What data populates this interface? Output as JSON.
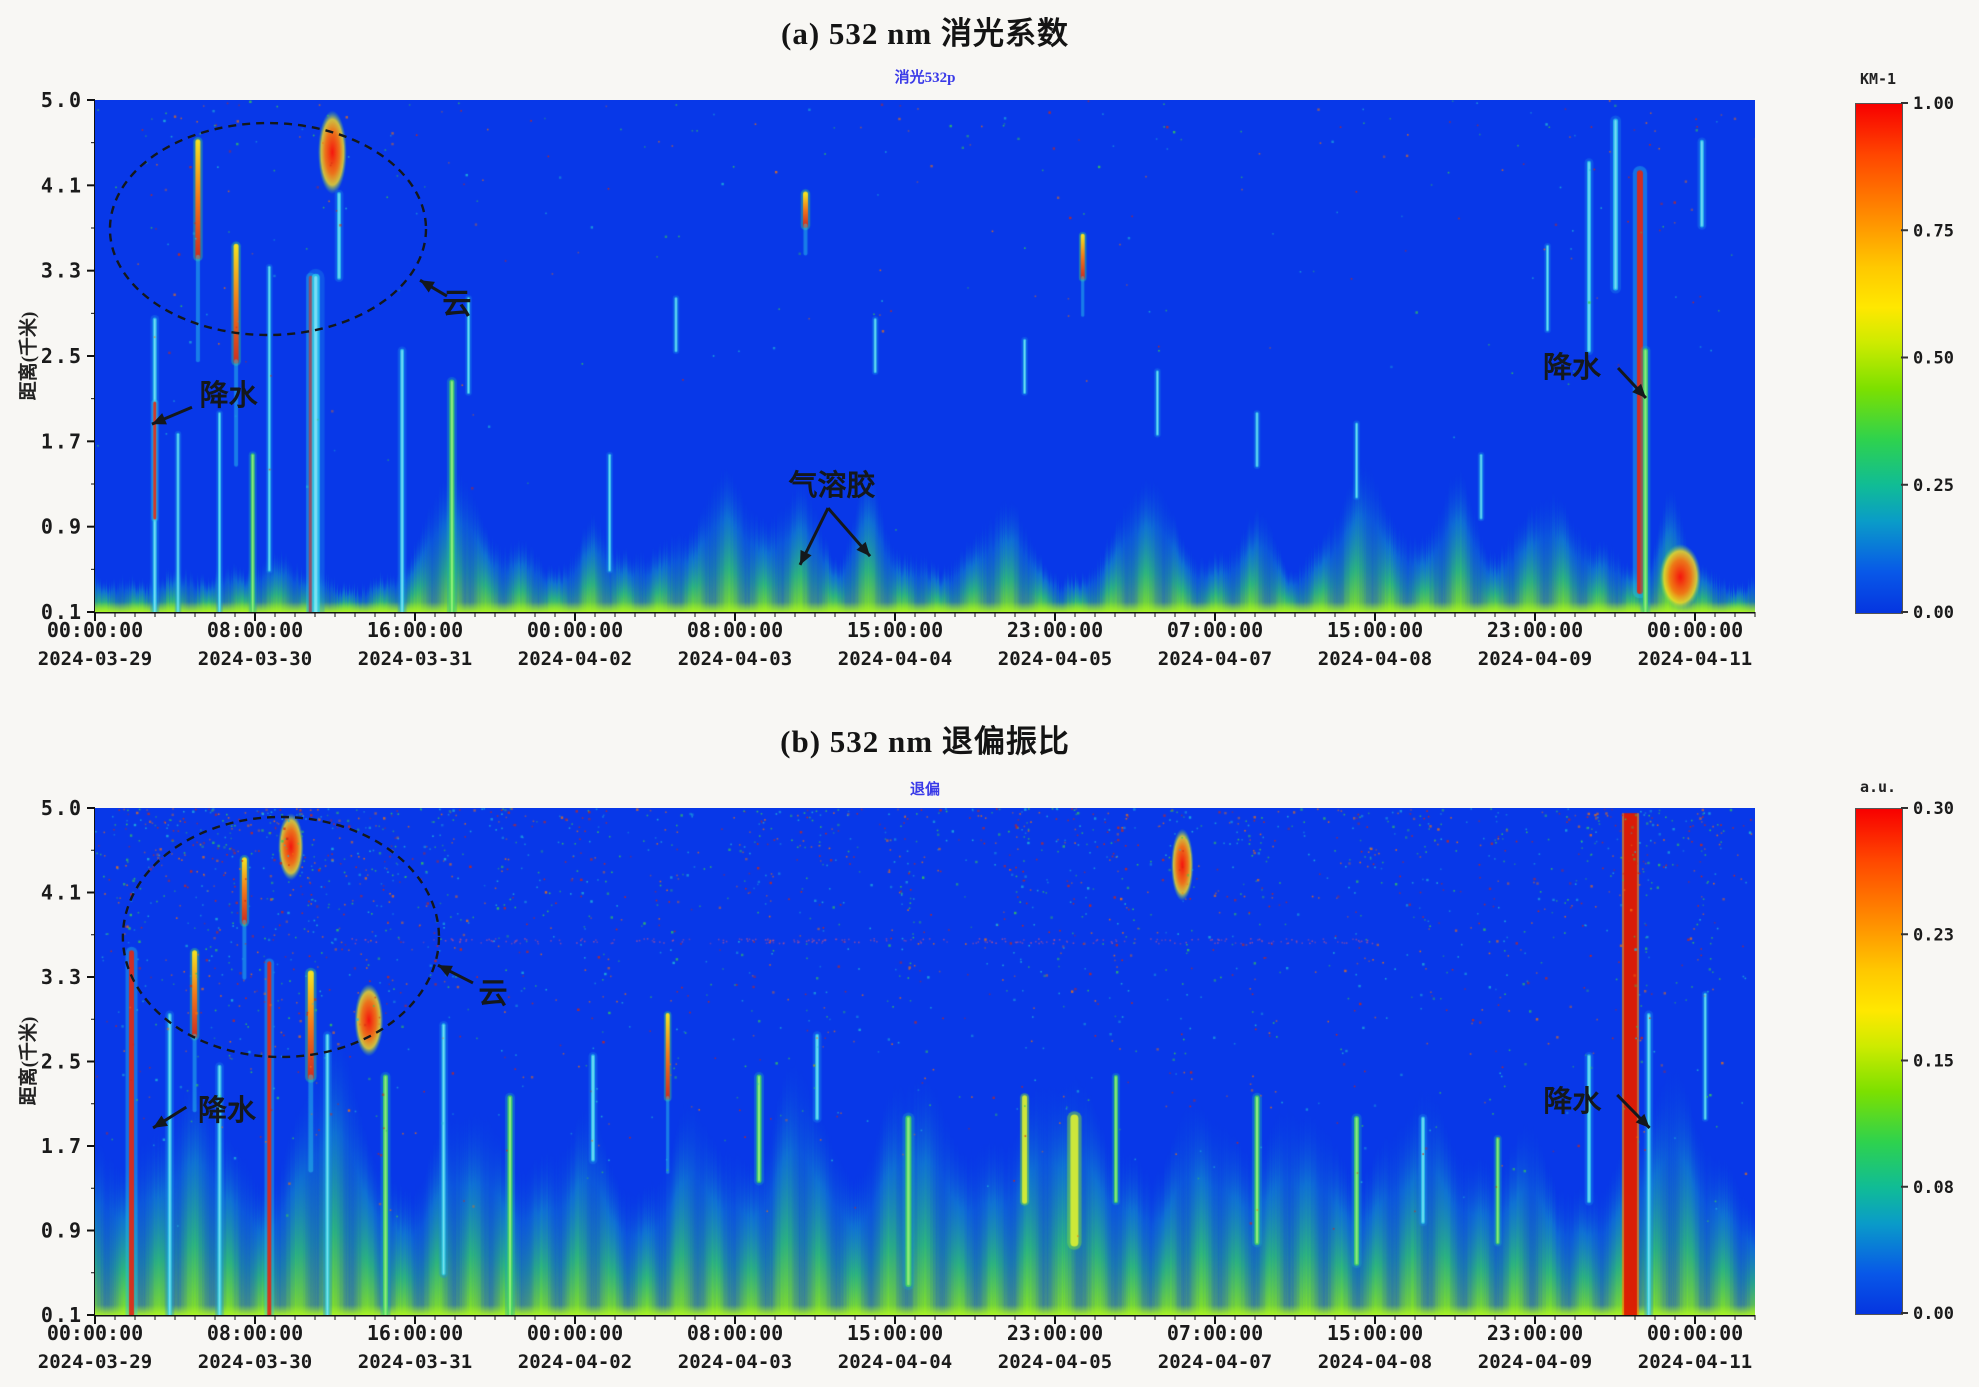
{
  "colors": {
    "heatmap_background": "#0838e8",
    "subtitle_text": "#3a3ae8",
    "annotation_ink": "#14181c",
    "colormap": [
      "#ff0000",
      "#ff8c00",
      "#ffe000",
      "#7ce000",
      "#12c08c",
      "#0a9cc8",
      "#0535e0"
    ]
  },
  "chart_data": [
    {
      "panel": "a",
      "type": "heatmap",
      "title": "(a) 532 nm 消光系数",
      "subtitle": "消光532p",
      "ylabel": "距离(千米)",
      "ylim": [
        0.1,
        5.0
      ],
      "y_ticks": [
        "5.0",
        "4.1",
        "3.3",
        "2.5",
        "1.7",
        "0.9",
        "0.1"
      ],
      "x_ticks": [
        {
          "time": "00:00:00",
          "date": "2024-03-29"
        },
        {
          "time": "08:00:00",
          "date": "2024-03-30"
        },
        {
          "time": "16:00:00",
          "date": "2024-03-31"
        },
        {
          "time": "00:00:00",
          "date": "2024-04-02"
        },
        {
          "time": "08:00:00",
          "date": "2024-04-03"
        },
        {
          "time": "15:00:00",
          "date": "2024-04-04"
        },
        {
          "time": "23:00:00",
          "date": "2024-04-05"
        },
        {
          "time": "07:00:00",
          "date": "2024-04-07"
        },
        {
          "time": "15:00:00",
          "date": "2024-04-08"
        },
        {
          "time": "23:00:00",
          "date": "2024-04-09"
        },
        {
          "time": "00:00:00",
          "date": "2024-04-11"
        }
      ],
      "colorbar": {
        "title": "KM-1",
        "range": [
          0.0,
          1.0
        ],
        "ticks": [
          "1.00",
          "0.75",
          "0.50",
          "0.25",
          "0.00"
        ]
      },
      "annotations": [
        {
          "label": "云",
          "label_xy": [
            0.218,
            0.397
          ],
          "arrows": [
            [
              0.212,
              0.383,
              0.1958,
              0.352
            ]
          ],
          "ellipse": {
            "cx": 0.1042,
            "cy": 0.252,
            "rx": 0.0952,
            "ry": 0.207
          }
        },
        {
          "label": "降水",
          "label_xy": [
            0.0805,
            0.576
          ],
          "arrows": [
            [
              0.0584,
              0.6,
              0.0343,
              0.633
            ]
          ]
        },
        {
          "label": "气溶胶",
          "label_xy": [
            0.444,
            0.752
          ],
          "arrows": [
            [
              0.4416,
              0.797,
              0.4247,
              0.908
            ],
            [
              0.4416,
              0.797,
              0.4669,
              0.891
            ]
          ]
        },
        {
          "label": "降水",
          "label_xy": [
            0.8898,
            0.5215
          ],
          "arrows": [
            [
              0.9175,
              0.5234,
              0.9343,
              0.582
            ]
          ]
        }
      ],
      "render": {
        "seed": 11,
        "layer_base": 0.35,
        "layer_var": 0.42,
        "max_h": 2.0,
        "speckles": 300,
        "dustline": false,
        "humps": [
          {
            "c": 0.215,
            "w": 0.018,
            "a": 0.9
          },
          {
            "c": 0.3,
            "w": 0.01,
            "a": 0.6
          },
          {
            "c": 0.38,
            "w": 0.02,
            "a": 0.7
          },
          {
            "c": 0.425,
            "w": 0.015,
            "a": 0.9
          },
          {
            "c": 0.465,
            "w": 0.012,
            "a": 0.8
          },
          {
            "c": 0.55,
            "w": 0.02,
            "a": 0.7
          },
          {
            "c": 0.635,
            "w": 0.02,
            "a": 0.8
          },
          {
            "c": 0.7,
            "w": 0.015,
            "a": 0.6
          },
          {
            "c": 0.765,
            "w": 0.02,
            "a": 0.7
          },
          {
            "c": 0.82,
            "w": 0.015,
            "a": 0.8
          },
          {
            "c": 0.87,
            "w": 0.02,
            "a": 0.6
          },
          {
            "c": 0.95,
            "w": 0.01,
            "a": 0.8
          }
        ],
        "plumes": [
          {
            "x": 0.036,
            "y0": 0.1,
            "y1": 2.9,
            "w": 4,
            "c": "cyan"
          },
          {
            "x": 0.036,
            "y0": 1.0,
            "y1": 2.1,
            "w": 3,
            "c": "red"
          },
          {
            "x": 0.05,
            "y0": 0.1,
            "y1": 1.8,
            "w": 3,
            "c": "cyan"
          },
          {
            "x": 0.062,
            "y0": 3.5,
            "y1": 4.6,
            "w": 5,
            "c": "warm"
          },
          {
            "x": 0.075,
            "y0": 0.1,
            "y1": 2.0,
            "w": 3,
            "c": "cyan"
          },
          {
            "x": 0.085,
            "y0": 2.5,
            "y1": 3.6,
            "w": 5,
            "c": "warm"
          },
          {
            "x": 0.095,
            "y0": 0.1,
            "y1": 1.6,
            "w": 4,
            "c": "green"
          },
          {
            "x": 0.105,
            "y0": 0.5,
            "y1": 3.4,
            "w": 3,
            "c": "cyan"
          },
          {
            "x": 0.13,
            "y0": 0.1,
            "y1": 3.3,
            "w": 4,
            "c": "red"
          },
          {
            "x": 0.133,
            "y0": 0.1,
            "y1": 3.3,
            "w": 8,
            "c": "cyan"
          },
          {
            "x": 0.143,
            "y0": 4.1,
            "y1": 4.9,
            "w": 9,
            "c": "hot"
          },
          {
            "x": 0.147,
            "y0": 3.3,
            "y1": 4.1,
            "w": 4,
            "c": "cyan"
          },
          {
            "x": 0.185,
            "y0": 0.1,
            "y1": 2.6,
            "w": 4,
            "c": "cyan"
          },
          {
            "x": 0.215,
            "y0": 0.1,
            "y1": 2.3,
            "w": 5,
            "c": "green"
          },
          {
            "x": 0.225,
            "y0": 2.2,
            "y1": 3.1,
            "w": 3,
            "c": "cyan"
          },
          {
            "x": 0.31,
            "y0": 0.5,
            "y1": 1.6,
            "w": 3,
            "c": "cyan"
          },
          {
            "x": 0.35,
            "y0": 2.6,
            "y1": 3.1,
            "w": 3,
            "c": "cyan"
          },
          {
            "x": 0.428,
            "y0": 3.8,
            "y1": 4.1,
            "w": 5,
            "c": "warm"
          },
          {
            "x": 0.47,
            "y0": 2.4,
            "y1": 2.9,
            "w": 3,
            "c": "cyan"
          },
          {
            "x": 0.56,
            "y0": 2.2,
            "y1": 2.7,
            "w": 3,
            "c": "cyan"
          },
          {
            "x": 0.595,
            "y0": 3.3,
            "y1": 3.7,
            "w": 4,
            "c": "warm"
          },
          {
            "x": 0.64,
            "y0": 1.8,
            "y1": 2.4,
            "w": 3,
            "c": "cyan"
          },
          {
            "x": 0.7,
            "y0": 1.5,
            "y1": 2.0,
            "w": 3,
            "c": "cyan"
          },
          {
            "x": 0.76,
            "y0": 1.2,
            "y1": 1.9,
            "w": 3,
            "c": "cyan"
          },
          {
            "x": 0.835,
            "y0": 1.0,
            "y1": 1.6,
            "w": 3,
            "c": "cyan"
          },
          {
            "x": 0.875,
            "y0": 2.8,
            "y1": 3.6,
            "w": 3,
            "c": "cyan"
          },
          {
            "x": 0.9,
            "y0": 2.6,
            "y1": 4.4,
            "w": 4,
            "c": "cyan"
          },
          {
            "x": 0.916,
            "y0": 3.2,
            "y1": 4.8,
            "w": 5,
            "c": "cyan"
          },
          {
            "x": 0.9307,
            "y0": 0.3,
            "y1": 4.3,
            "w": 6,
            "c": "red"
          },
          {
            "x": 0.934,
            "y0": 0.1,
            "y1": 2.6,
            "w": 5,
            "c": "green"
          },
          {
            "x": 0.955,
            "y0": 0.12,
            "y1": 0.75,
            "w": 13,
            "c": "hot"
          },
          {
            "x": 0.968,
            "y0": 3.8,
            "y1": 4.6,
            "w": 4,
            "c": "cyan"
          }
        ]
      }
    },
    {
      "panel": "b",
      "type": "heatmap",
      "title": "(b) 532 nm 退偏振比",
      "subtitle": "退偏",
      "ylabel": "距离(千米)",
      "ylim": [
        0.1,
        5.0
      ],
      "y_ticks": [
        "5.0",
        "4.1",
        "3.3",
        "2.5",
        "1.7",
        "0.9",
        "0.1"
      ],
      "x_ticks": [
        {
          "time": "00:00:00",
          "date": "2024-03-29"
        },
        {
          "time": "08:00:00",
          "date": "2024-03-30"
        },
        {
          "time": "16:00:00",
          "date": "2024-03-31"
        },
        {
          "time": "00:00:00",
          "date": "2024-04-02"
        },
        {
          "time": "08:00:00",
          "date": "2024-04-03"
        },
        {
          "time": "15:00:00",
          "date": "2024-04-04"
        },
        {
          "time": "23:00:00",
          "date": "2024-04-05"
        },
        {
          "time": "07:00:00",
          "date": "2024-04-07"
        },
        {
          "time": "15:00:00",
          "date": "2024-04-08"
        },
        {
          "time": "23:00:00",
          "date": "2024-04-09"
        },
        {
          "time": "00:00:00",
          "date": "2024-04-11"
        }
      ],
      "colorbar": {
        "title": "a.u.",
        "range": [
          0.0,
          0.3
        ],
        "ticks": [
          "0.30",
          "0.23",
          "0.15",
          "0.08",
          "0.00"
        ]
      },
      "annotations": [
        {
          "label": "云",
          "label_xy": [
            0.2398,
            0.365
          ],
          "arrows": [
            [
              0.2277,
              0.345,
              0.2066,
              0.31
            ]
          ],
          "ellipse": {
            "cx": 0.112,
            "cy": 0.2544,
            "rx": 0.0952,
            "ry": 0.2367
          }
        },
        {
          "label": "降水",
          "label_xy": [
            0.0795,
            0.596
          ],
          "arrows": [
            [
              0.055,
              0.59,
              0.035,
              0.631
            ]
          ]
        },
        {
          "label": "降水",
          "label_xy": [
            0.89,
            0.578
          ],
          "arrows": [
            [
              0.917,
              0.566,
              0.9365,
              0.631
            ]
          ]
        }
      ],
      "render": {
        "seed": 29,
        "layer_base": 0.85,
        "layer_var": 0.75,
        "max_h": 3.0,
        "speckles": 2400,
        "dustline": true,
        "humps": [
          {
            "c": 0.06,
            "w": 0.03,
            "a": 1.0
          },
          {
            "c": 0.145,
            "w": 0.025,
            "a": 1.2
          },
          {
            "c": 0.225,
            "w": 0.03,
            "a": 1.1
          },
          {
            "c": 0.3,
            "w": 0.02,
            "a": 0.9
          },
          {
            "c": 0.36,
            "w": 0.025,
            "a": 1.0
          },
          {
            "c": 0.425,
            "w": 0.02,
            "a": 1.0
          },
          {
            "c": 0.49,
            "w": 0.03,
            "a": 1.1
          },
          {
            "c": 0.59,
            "w": 0.03,
            "a": 1.3
          },
          {
            "c": 0.665,
            "w": 0.02,
            "a": 0.9
          },
          {
            "c": 0.73,
            "w": 0.03,
            "a": 1.2
          },
          {
            "c": 0.8,
            "w": 0.025,
            "a": 1.0
          },
          {
            "c": 0.865,
            "w": 0.02,
            "a": 0.9
          },
          {
            "c": 0.95,
            "w": 0.02,
            "a": 1.0
          }
        ],
        "plumes": [
          {
            "x": 0.022,
            "y0": 0.1,
            "y1": 3.6,
            "w": 5,
            "c": "red"
          },
          {
            "x": 0.045,
            "y0": 0.1,
            "y1": 3.0,
            "w": 4,
            "c": "cyan"
          },
          {
            "x": 0.06,
            "y0": 2.8,
            "y1": 3.6,
            "w": 5,
            "c": "warm"
          },
          {
            "x": 0.075,
            "y0": 0.1,
            "y1": 2.5,
            "w": 4,
            "c": "cyan"
          },
          {
            "x": 0.09,
            "y0": 3.9,
            "y1": 4.5,
            "w": 5,
            "c": "warm"
          },
          {
            "x": 0.105,
            "y0": 0.1,
            "y1": 3.5,
            "w": 4,
            "c": "red"
          },
          {
            "x": 0.118,
            "y0": 4.3,
            "y1": 4.95,
            "w": 8,
            "c": "hot"
          },
          {
            "x": 0.13,
            "y0": 2.4,
            "y1": 3.4,
            "w": 6,
            "c": "warm"
          },
          {
            "x": 0.14,
            "y0": 0.1,
            "y1": 2.8,
            "w": 4,
            "c": "cyan"
          },
          {
            "x": 0.165,
            "y0": 2.6,
            "y1": 3.3,
            "w": 9,
            "c": "hot"
          },
          {
            "x": 0.175,
            "y0": 0.1,
            "y1": 2.4,
            "w": 5,
            "c": "green"
          },
          {
            "x": 0.21,
            "y0": 0.5,
            "y1": 2.9,
            "w": 4,
            "c": "cyan"
          },
          {
            "x": 0.25,
            "y0": 0.1,
            "y1": 2.2,
            "w": 5,
            "c": "green"
          },
          {
            "x": 0.3,
            "y0": 1.6,
            "y1": 2.6,
            "w": 4,
            "c": "cyan"
          },
          {
            "x": 0.345,
            "y0": 2.2,
            "y1": 3.0,
            "w": 4,
            "c": "warm"
          },
          {
            "x": 0.4,
            "y0": 1.4,
            "y1": 2.4,
            "w": 5,
            "c": "green"
          },
          {
            "x": 0.435,
            "y0": 2.0,
            "y1": 2.8,
            "w": 4,
            "c": "cyan"
          },
          {
            "x": 0.49,
            "y0": 0.4,
            "y1": 2.0,
            "w": 6,
            "c": "green"
          },
          {
            "x": 0.56,
            "y0": 1.2,
            "y1": 2.2,
            "w": 5,
            "c": "yellow"
          },
          {
            "x": 0.59,
            "y0": 0.8,
            "y1": 2.0,
            "w": 8,
            "c": "yellow"
          },
          {
            "x": 0.615,
            "y0": 1.2,
            "y1": 2.4,
            "w": 4,
            "c": "green"
          },
          {
            "x": 0.655,
            "y0": 4.1,
            "y1": 4.8,
            "w": 7,
            "c": "hot"
          },
          {
            "x": 0.7,
            "y0": 0.8,
            "y1": 2.2,
            "w": 5,
            "c": "green"
          },
          {
            "x": 0.76,
            "y0": 0.6,
            "y1": 2.0,
            "w": 5,
            "c": "green"
          },
          {
            "x": 0.8,
            "y0": 1.0,
            "y1": 2.0,
            "w": 4,
            "c": "cyan"
          },
          {
            "x": 0.845,
            "y0": 0.8,
            "y1": 1.8,
            "w": 4,
            "c": "green"
          },
          {
            "x": 0.9,
            "y0": 1.2,
            "y1": 2.6,
            "w": 4,
            "c": "cyan"
          },
          {
            "x": 0.925,
            "y0": 0.1,
            "y1": 4.95,
            "w": 13,
            "c": "redcol"
          },
          {
            "x": 0.936,
            "y0": 0.1,
            "y1": 3.0,
            "w": 4,
            "c": "cyan"
          },
          {
            "x": 0.97,
            "y0": 2.0,
            "y1": 3.2,
            "w": 3,
            "c": "cyan"
          }
        ]
      }
    }
  ]
}
